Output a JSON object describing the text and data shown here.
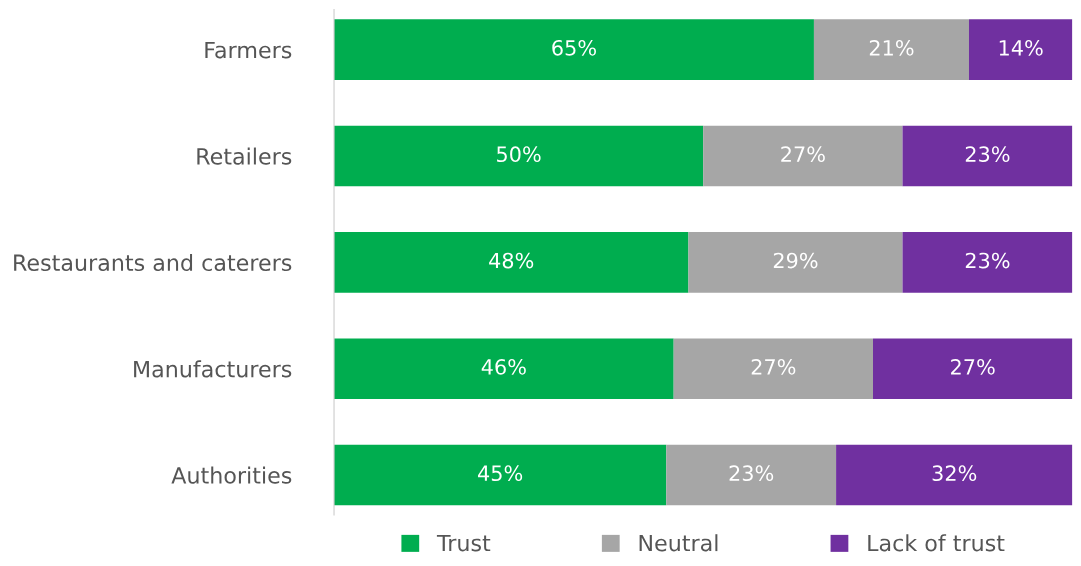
{
  "chart_data": {
    "type": "bar",
    "orientation": "horizontal",
    "stacked": true,
    "tick_labels": "y",
    "grid": false,
    "legend": "bottom",
    "categories": [
      "Farmers",
      "Retailers",
      "Restaurants and caterers",
      "Manufacturers",
      "Authorities"
    ],
    "series": [
      {
        "name": "Trust",
        "color": "#00ad4f",
        "values": [
          65,
          50,
          48,
          46,
          45
        ],
        "value_labels": [
          "65%",
          "50%",
          "48%",
          "46%",
          "45%"
        ]
      },
      {
        "name": "Neutral",
        "color": "#a6a6a6",
        "values": [
          21,
          27,
          29,
          27,
          23
        ],
        "value_labels": [
          "21%",
          "27%",
          "29%",
          "27%",
          "23%"
        ]
      },
      {
        "name": "Lack of trust",
        "color": "#7030a0",
        "values": [
          14,
          23,
          23,
          27,
          32
        ],
        "value_labels": [
          "14%",
          "23%",
          "23%",
          "27%",
          "32%"
        ]
      }
    ]
  }
}
